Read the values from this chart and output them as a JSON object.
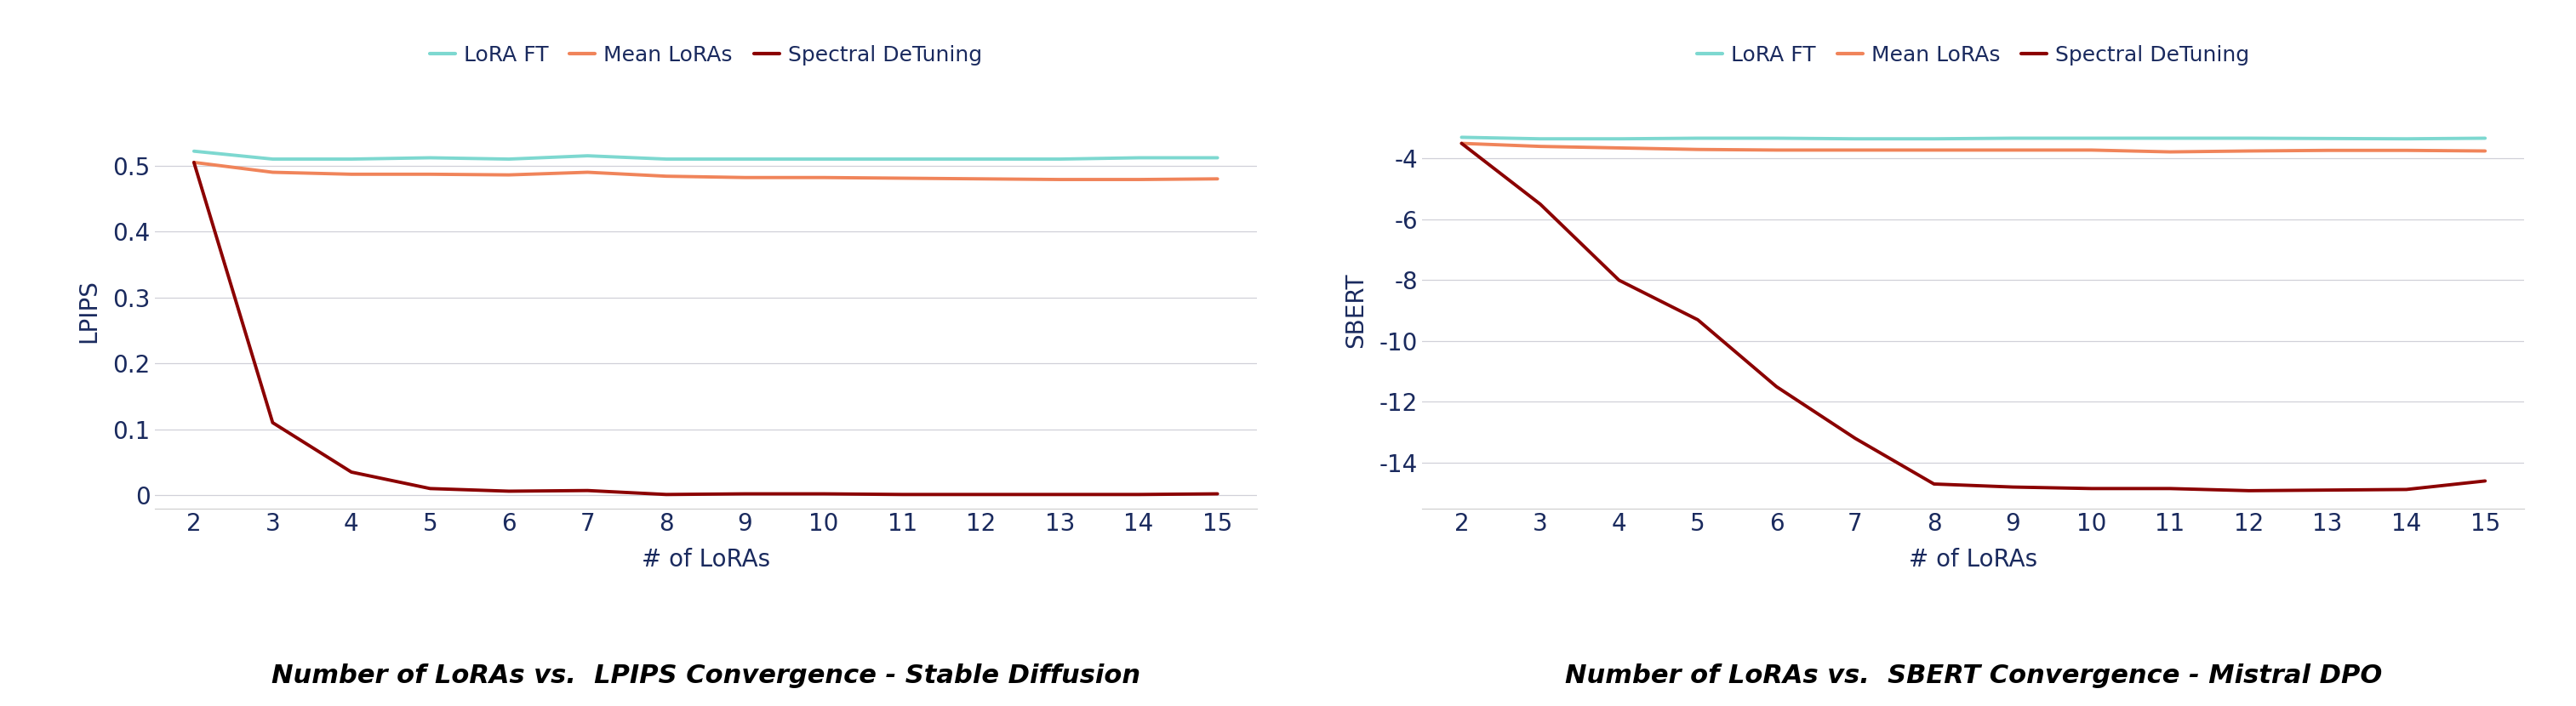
{
  "x": [
    2,
    3,
    4,
    5,
    6,
    7,
    8,
    9,
    10,
    11,
    12,
    13,
    14,
    15
  ],
  "left": {
    "title": "Number of LoRAs vs.  LPIPS Convergence - Stable Diffusion",
    "ylabel": "LPIPS",
    "xlabel": "# of LoRAs",
    "lora_ft": [
      0.522,
      0.51,
      0.51,
      0.512,
      0.51,
      0.515,
      0.51,
      0.51,
      0.51,
      0.51,
      0.51,
      0.51,
      0.512,
      0.512
    ],
    "mean_loras": [
      0.505,
      0.49,
      0.487,
      0.487,
      0.486,
      0.49,
      0.484,
      0.482,
      0.482,
      0.481,
      0.48,
      0.479,
      0.479,
      0.48
    ],
    "spectral": [
      0.505,
      0.11,
      0.035,
      0.01,
      0.006,
      0.007,
      0.001,
      0.002,
      0.002,
      0.001,
      0.001,
      0.001,
      0.001,
      0.002
    ],
    "ylim": [
      -0.02,
      0.58
    ],
    "yticks": [
      0.0,
      0.1,
      0.2,
      0.3,
      0.4,
      0.5
    ]
  },
  "right": {
    "title": "Number of LoRAs vs.  SBERT Convergence - Mistral DPO",
    "ylabel": "SBERT",
    "xlabel": "# of LoRAs",
    "lora_ft": [
      -3.3,
      -3.35,
      -3.35,
      -3.33,
      -3.33,
      -3.35,
      -3.35,
      -3.33,
      -3.33,
      -3.33,
      -3.33,
      -3.34,
      -3.35,
      -3.33
    ],
    "mean_loras": [
      -3.5,
      -3.6,
      -3.65,
      -3.7,
      -3.72,
      -3.72,
      -3.72,
      -3.72,
      -3.72,
      -3.78,
      -3.75,
      -3.73,
      -3.73,
      -3.75
    ],
    "spectral": [
      -3.5,
      -5.5,
      -8.0,
      -9.3,
      -11.5,
      -13.2,
      -14.7,
      -14.8,
      -14.85,
      -14.85,
      -14.92,
      -14.9,
      -14.88,
      -14.6
    ],
    "ylim": [
      -15.5,
      -2.5
    ],
    "yticks": [
      -4,
      -6,
      -8,
      -10,
      -12,
      -14
    ]
  },
  "colors": {
    "lora_ft": "#7dd8d0",
    "mean_loras": "#f0845a",
    "spectral": "#8b0000"
  },
  "legend_labels": [
    "LoRA FT",
    "Mean LoRAs",
    "Spectral DeTuning"
  ],
  "line_width": 2.8,
  "background_color": "#ffffff",
  "grid_color": "#d0d0d8",
  "tick_label_color": "#1a2a5e",
  "axis_label_color": "#1a2a5e",
  "title_color": "#000000",
  "title_fontsize": 22,
  "axis_fontsize": 20,
  "tick_fontsize": 20,
  "legend_fontsize": 18
}
